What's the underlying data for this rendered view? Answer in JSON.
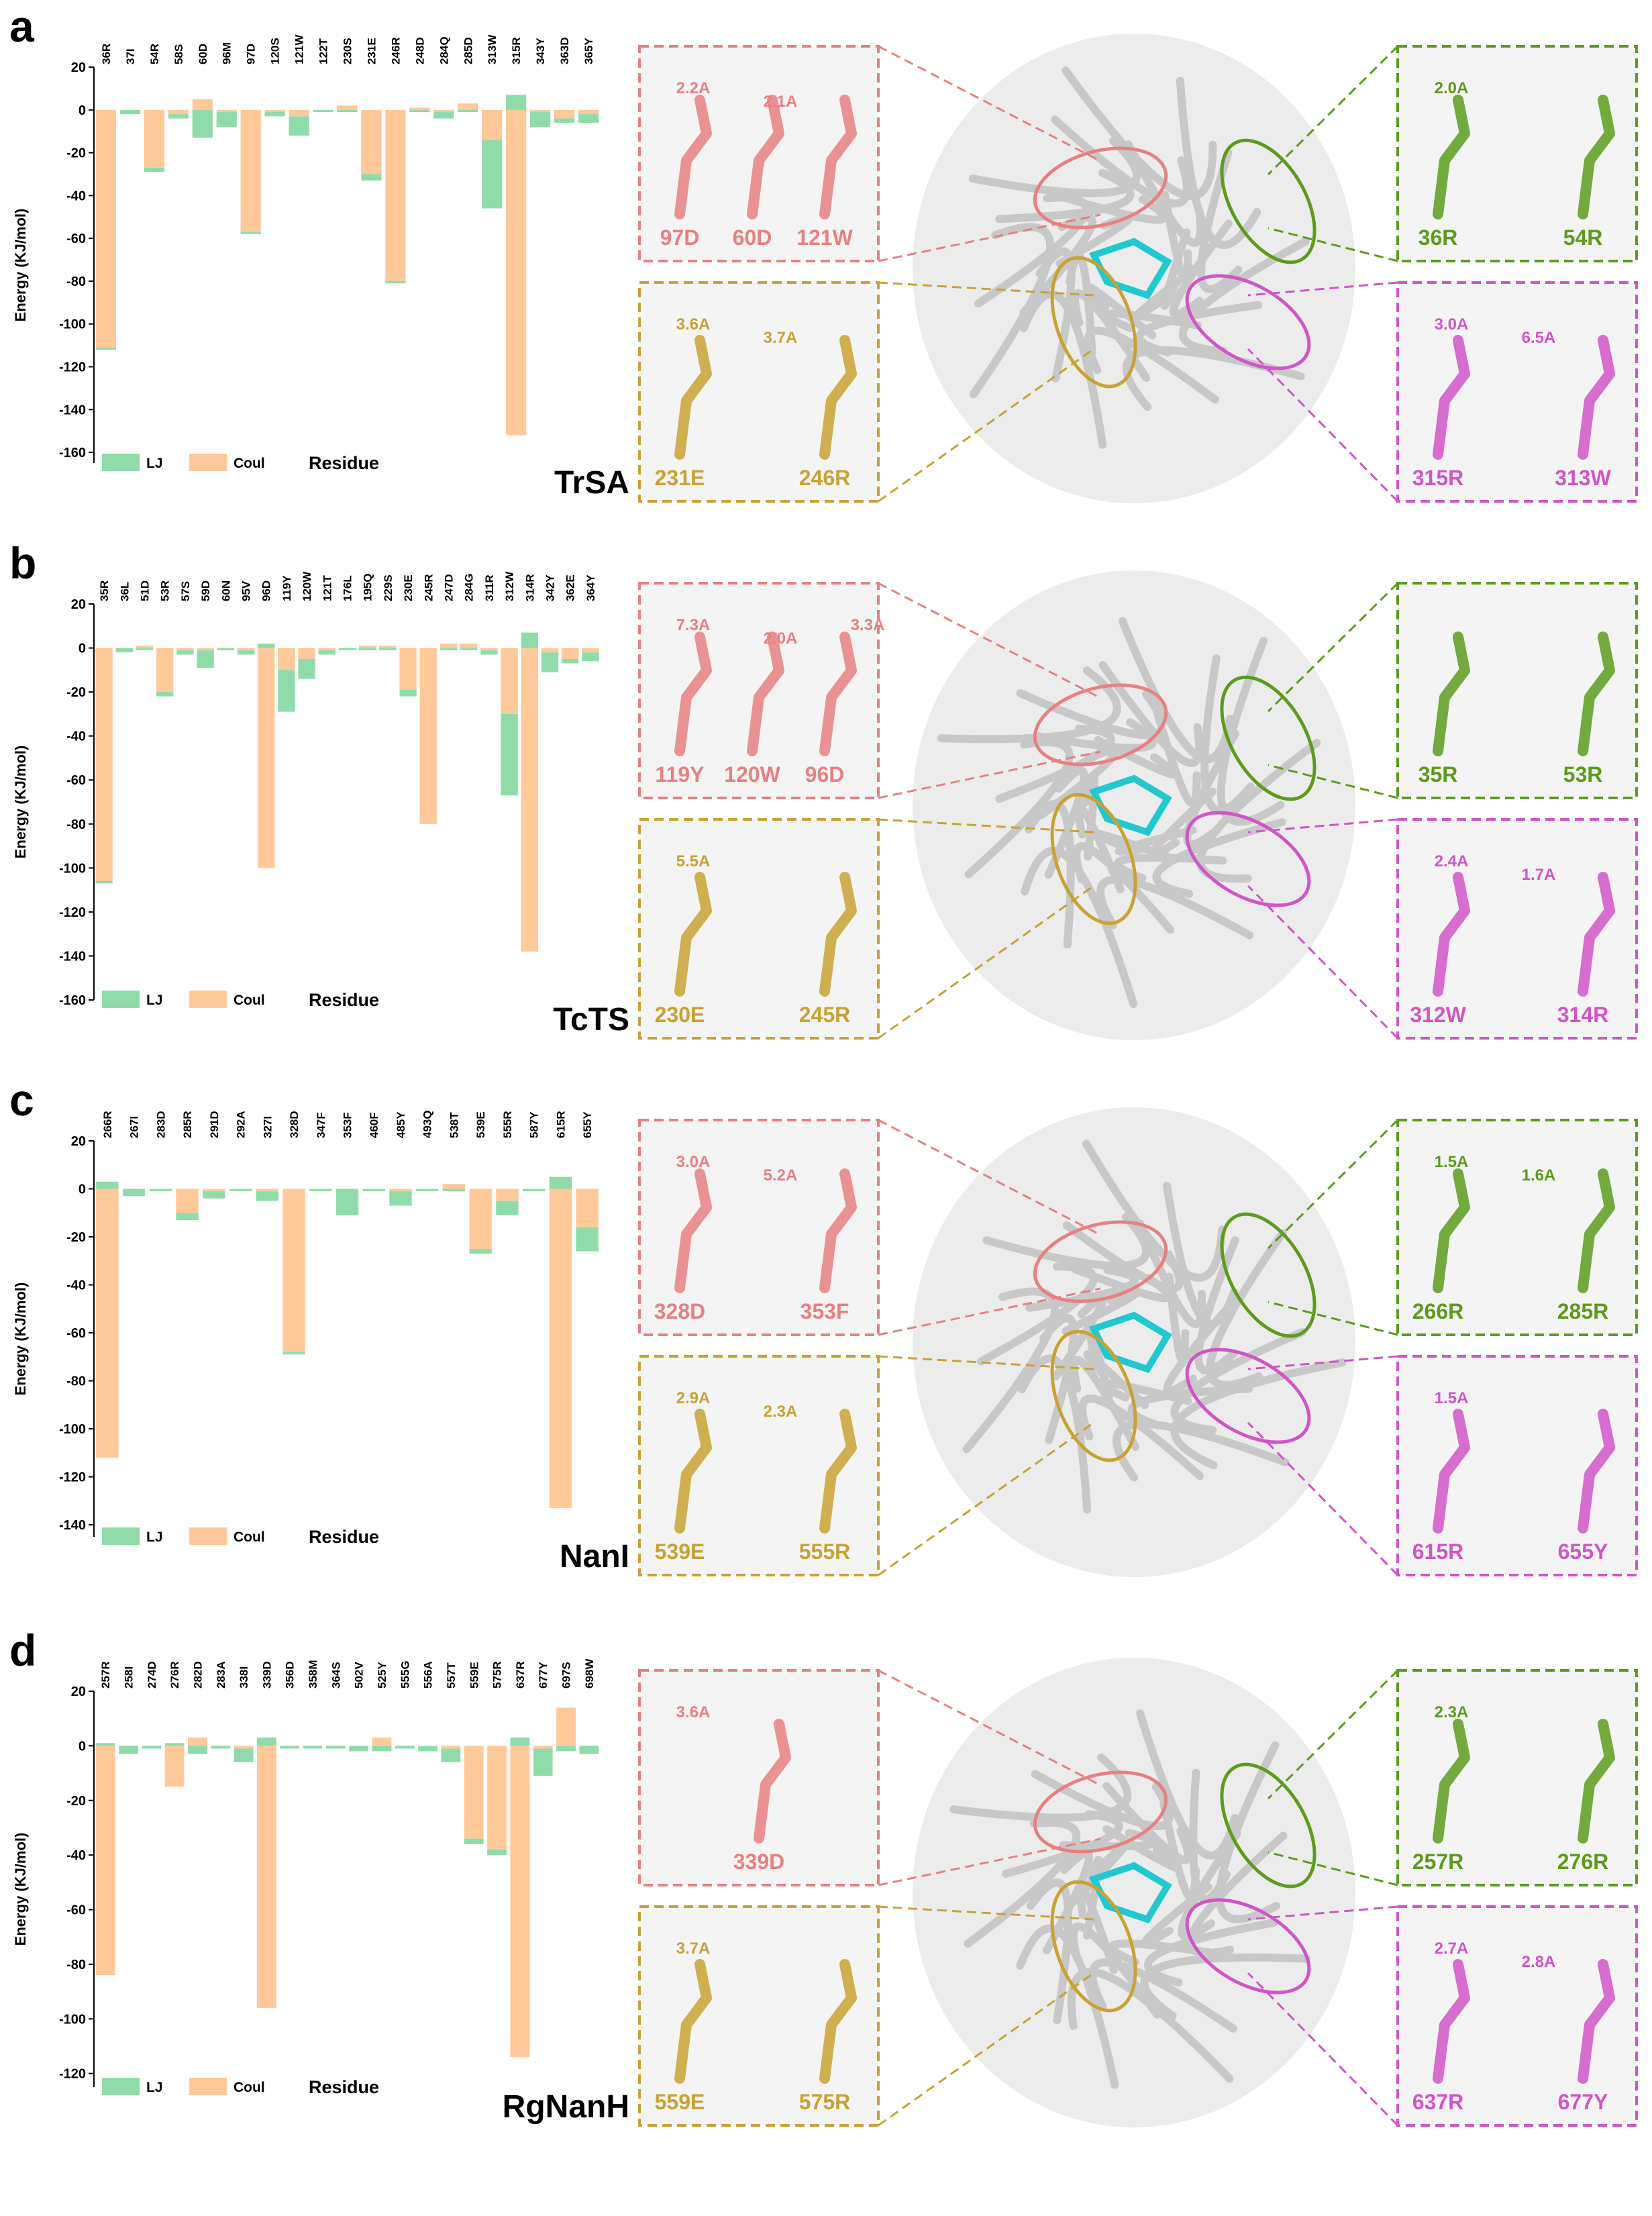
{
  "chart_data": [
    {
      "type": "bar",
      "y_label": "Energy (KJ/mol)",
      "x_label": "Residue",
      "categories": [
        "36R",
        "37I",
        "54R",
        "58S",
        "60D",
        "96M",
        "97D",
        "120S",
        "121W",
        "122T",
        "230S",
        "231E",
        "246R",
        "248D",
        "284Q",
        "285D",
        "313W",
        "315R",
        "343Y",
        "363D",
        "365Y"
      ],
      "series": [
        {
          "name": "LJ",
          "color": "#8fdcaa",
          "values": [
            -1,
            -2,
            -2,
            -2,
            -13,
            -7,
            -1,
            -2,
            -9,
            -1,
            -1,
            -3,
            -1,
            -1,
            -3,
            -1,
            -32,
            7,
            -7,
            -2,
            -4
          ]
        },
        {
          "name": "Coul",
          "color": "#ffc99a",
          "values": [
            -111,
            0,
            -27,
            -2,
            5,
            -1,
            -57,
            -1,
            -3,
            0,
            2,
            -30,
            -80,
            1,
            -1,
            3,
            -14,
            -152,
            -1,
            -4,
            -2
          ]
        }
      ],
      "ylim": [
        -165,
        20
      ],
      "yticks": [
        20,
        0,
        -20,
        -40,
        -60,
        -80,
        -100,
        -120,
        -140,
        -160
      ]
    },
    {
      "type": "bar",
      "y_label": "Energy (KJ/mol)",
      "x_label": "Residue",
      "categories": [
        "35R",
        "36L",
        "51D",
        "53R",
        "57S",
        "59D",
        "60N",
        "95V",
        "96D",
        "119Y",
        "120W",
        "121T",
        "176L",
        "195Q",
        "229S",
        "230E",
        "245R",
        "247D",
        "284G",
        "311R",
        "312W",
        "314R",
        "342Y",
        "362E",
        "364Y"
      ],
      "series": [
        {
          "name": "LJ",
          "color": "#8fdcaa",
          "values": [
            -1,
            -2,
            -1,
            -2,
            -2,
            -8,
            -1,
            -2,
            2,
            -19,
            -9,
            -2,
            -1,
            -1,
            -1,
            -3,
            0,
            -1,
            -1,
            -2,
            -37,
            7,
            -9,
            -2,
            -4
          ]
        },
        {
          "name": "Coul",
          "color": "#ffc99a",
          "values": [
            -106,
            0,
            1,
            -20,
            -1,
            -1,
            0,
            -1,
            -100,
            -10,
            -5,
            -1,
            0,
            1,
            1,
            -19,
            -80,
            2,
            2,
            -1,
            -30,
            -138,
            -2,
            -5,
            -2
          ]
        }
      ],
      "ylim": [
        -160,
        20
      ],
      "yticks": [
        20,
        0,
        -20,
        -40,
        -60,
        -80,
        -100,
        -120,
        -140,
        -160
      ]
    },
    {
      "type": "bar",
      "y_label": "Energy (KJ/mol)",
      "x_label": "Residue",
      "categories": [
        "266R",
        "267I",
        "283D",
        "285R",
        "291D",
        "292A",
        "327I",
        "328D",
        "347F",
        "353F",
        "460F",
        "485Y",
        "493Q",
        "538T",
        "539E",
        "555R",
        "587Y",
        "615R",
        "655Y"
      ],
      "series": [
        {
          "name": "LJ",
          "color": "#8fdcaa",
          "values": [
            3,
            -3,
            -1,
            -3,
            -3,
            -1,
            -4,
            -1,
            -1,
            -11,
            -1,
            -6,
            -1,
            -1,
            -2,
            -6,
            -1,
            5,
            -10
          ]
        },
        {
          "name": "Coul",
          "color": "#ffc99a",
          "values": [
            -112,
            0,
            0,
            -10,
            -1,
            0,
            -1,
            -68,
            0,
            0,
            0,
            -1,
            0,
            2,
            -25,
            -5,
            0,
            -133,
            -16
          ]
        }
      ],
      "ylim": [
        -145,
        20
      ],
      "yticks": [
        20,
        0,
        -20,
        -40,
        -60,
        -80,
        -100,
        -120,
        -140
      ]
    },
    {
      "type": "bar",
      "y_label": "Energy (KJ/mol)",
      "x_label": "Residue",
      "categories": [
        "257R",
        "258I",
        "274D",
        "276R",
        "282D",
        "283A",
        "338I",
        "339D",
        "356D",
        "358M",
        "364S",
        "502V",
        "525Y",
        "555G",
        "556A",
        "557T",
        "559E",
        "575R",
        "637R",
        "677Y",
        "697S",
        "698W"
      ],
      "series": [
        {
          "name": "LJ",
          "color": "#8fdcaa",
          "values": [
            1,
            -3,
            -1,
            1,
            -3,
            -1,
            -5,
            3,
            -1,
            -1,
            -1,
            -2,
            -2,
            -1,
            -2,
            -5,
            -2,
            -2,
            3,
            -10,
            -2,
            -3
          ]
        },
        {
          "name": "Coul",
          "color": "#ffc99a",
          "values": [
            -84,
            0,
            0,
            -15,
            3,
            0,
            -1,
            -96,
            0,
            0,
            0,
            0,
            3,
            0,
            0,
            -1,
            -34,
            -38,
            -114,
            -1,
            14,
            0
          ]
        }
      ],
      "ylim": [
        -125,
        20
      ],
      "yticks": [
        20,
        0,
        -20,
        -40,
        -60,
        -80,
        -100,
        -120
      ]
    }
  ],
  "panels": [
    {
      "label": "a",
      "protein": "TrSA",
      "insets": [
        {
          "color": "#e88080",
          "residues": [
            "97D",
            "60D",
            "121W"
          ],
          "distances": [
            "2.2A",
            "2.1A"
          ]
        },
        {
          "color": "#c9a233",
          "residues": [
            "231E",
            "246R"
          ],
          "distances": [
            "3.6A",
            "3.7A"
          ]
        },
        {
          "color": "#5c9c1c",
          "residues": [
            "36R",
            "54R"
          ],
          "distances": [
            "2.0A"
          ]
        },
        {
          "color": "#d055c8",
          "residues": [
            "315R",
            "313W"
          ],
          "distances": [
            "3.0A",
            "6.5A"
          ]
        }
      ]
    },
    {
      "label": "b",
      "protein": "TcTS",
      "insets": [
        {
          "color": "#e88080",
          "residues": [
            "119Y",
            "120W",
            "96D"
          ],
          "distances": [
            "7.3A",
            "2.0A",
            "3.3A"
          ]
        },
        {
          "color": "#c9a233",
          "residues": [
            "230E",
            "245R"
          ],
          "distances": [
            "5.5A"
          ]
        },
        {
          "color": "#5c9c1c",
          "residues": [
            "35R",
            "53R"
          ],
          "distances": []
        },
        {
          "color": "#d055c8",
          "residues": [
            "312W",
            "314R"
          ],
          "distances": [
            "2.4A",
            "1.7A"
          ]
        }
      ]
    },
    {
      "label": "c",
      "protein": "NanI",
      "insets": [
        {
          "color": "#e88080",
          "residues": [
            "328D",
            "353F"
          ],
          "distances": [
            "3.0A",
            "5.2A"
          ]
        },
        {
          "color": "#c9a233",
          "residues": [
            "539E",
            "555R"
          ],
          "distances": [
            "2.9A",
            "2.3A"
          ]
        },
        {
          "color": "#5c9c1c",
          "residues": [
            "266R",
            "285R"
          ],
          "distances": [
            "1.5A",
            "1.6A"
          ]
        },
        {
          "color": "#d055c8",
          "residues": [
            "615R",
            "655Y"
          ],
          "distances": [
            "1.5A"
          ]
        }
      ]
    },
    {
      "label": "d",
      "protein": "RgNanH",
      "insets": [
        {
          "color": "#e88080",
          "residues": [
            "339D"
          ],
          "distances": [
            "3.6A"
          ]
        },
        {
          "color": "#c9a233",
          "residues": [
            "559E",
            "575R"
          ],
          "distances": [
            "3.7A"
          ]
        },
        {
          "color": "#5c9c1c",
          "residues": [
            "257R",
            "276R"
          ],
          "distances": [
            "2.3A"
          ]
        },
        {
          "color": "#d055c8",
          "residues": [
            "637R",
            "677Y"
          ],
          "distances": [
            "2.7A",
            "2.8A"
          ]
        }
      ]
    }
  ]
}
